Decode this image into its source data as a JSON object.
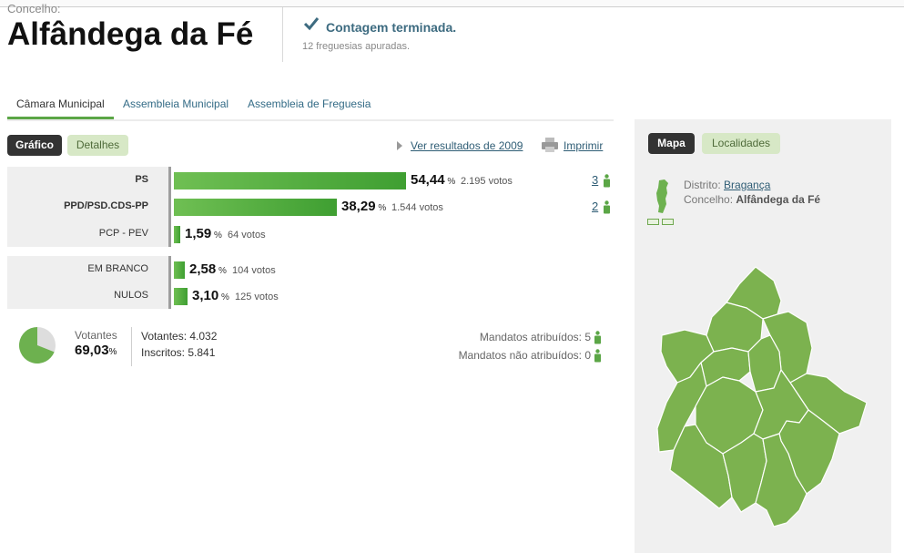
{
  "header": {
    "caption": "Concelho:",
    "title": "Alfândega da Fé",
    "status_title": "Contagem terminada.",
    "status_sub": "12 freguesias apuradas."
  },
  "tabs": [
    {
      "label": "Câmara Municipal",
      "active": true
    },
    {
      "label": "Assembleia Municipal",
      "active": false
    },
    {
      "label": "Assembleia de Freguesia",
      "active": false
    }
  ],
  "view_toggle": {
    "grafico": "Gráfico",
    "detalhes": "Detalhes"
  },
  "links": {
    "previous_results": "Ver resultados de 2009",
    "print": "Imprimir"
  },
  "results": [
    {
      "party": "PS",
      "percent": "54,44",
      "votes": "2.195 votos",
      "seats": "3",
      "share": 0.5444
    },
    {
      "party": "PPD/PSD.CDS-PP",
      "percent": "38,29",
      "votes": "1.544 votos",
      "seats": "2",
      "share": 0.3829
    },
    {
      "party": "PCP - PEV",
      "percent": "1,59",
      "votes": "64 votos",
      "seats": "",
      "share": 0.0159
    }
  ],
  "others": [
    {
      "label": "EM BRANCO",
      "percent": "2,58",
      "votes": "104 votos",
      "share": 0.0258
    },
    {
      "label": "NULOS",
      "percent": "3,10",
      "votes": "125 votos",
      "share": 0.031
    }
  ],
  "percent_symbol": "%",
  "turnout": {
    "label": "Votantes",
    "percent": "69,03",
    "share": 0.6903,
    "votantes": "Votantes: 4.032",
    "inscritos": "Inscritos: 5.841"
  },
  "mandates": {
    "attributed": "Mandatos atribuídos: 5",
    "not_attributed": "Mandatos não atribuídos: 0"
  },
  "map_panel": {
    "tab_mapa": "Mapa",
    "tab_localidades": "Localidades",
    "distrito_label": "Distrito:",
    "distrito_value": "Bragança",
    "concelho_label": "Concelho:",
    "concelho_value": "Alfândega da Fé"
  },
  "colors": {
    "bar_green": "#4caf3a",
    "map_green": "#7cb24f",
    "accent_link": "#2f5d75"
  }
}
